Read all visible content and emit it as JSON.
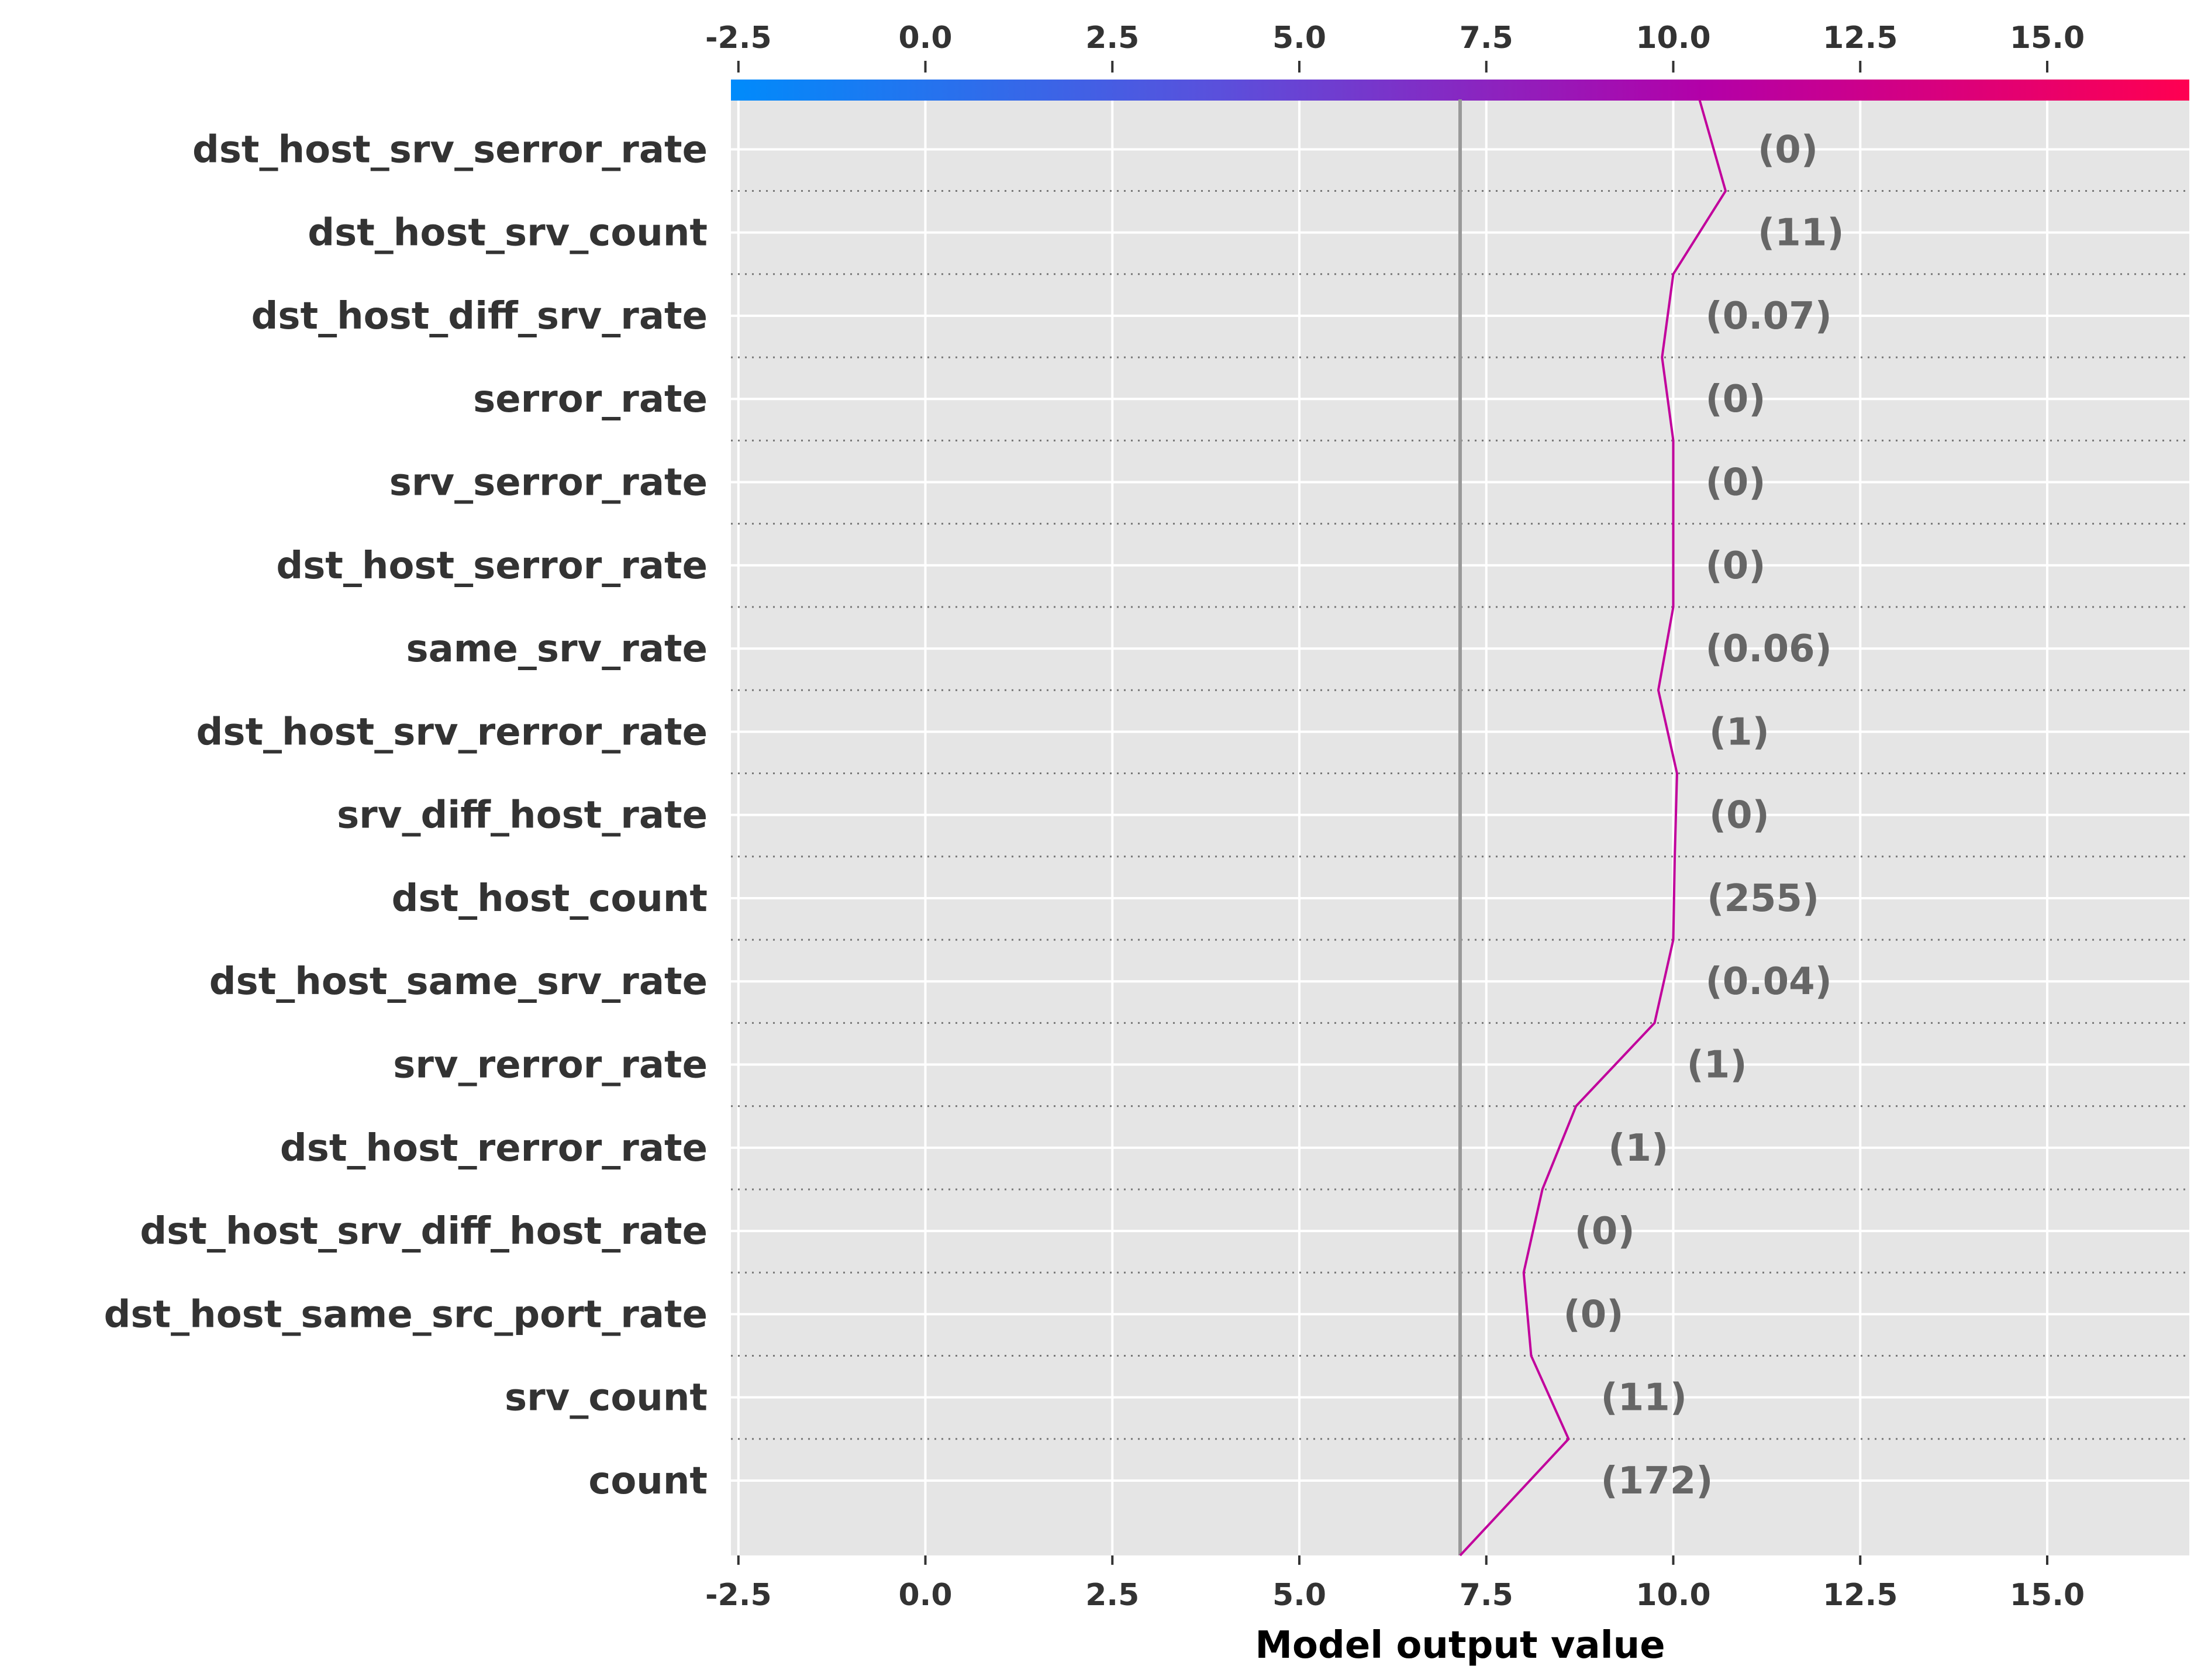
{
  "chart_data": {
    "type": "line",
    "chart_kind": "shap-decision-plot",
    "xlabel": "Model output value",
    "xlim": [
      -2.6,
      16.9
    ],
    "x_ticks": [
      -2.5,
      0.0,
      2.5,
      5.0,
      7.5,
      10.0,
      12.5,
      15.0
    ],
    "x_tick_labels": [
      "-2.5",
      "0.0",
      "2.5",
      "5.0",
      "7.5",
      "10.0",
      "12.5",
      "15.0"
    ],
    "base_value": 7.15,
    "grid": true,
    "background_color": "#e5e5e5",
    "line_color": "#c1009c",
    "base_line_color": "#999999",
    "colorbar": {
      "position": "top",
      "colors": [
        "#008bfb",
        "#5a50dc",
        "#b300a8",
        "#ff0051"
      ]
    },
    "features": [
      {
        "name": "dst_host_srv_serror_rate",
        "value_label": "(0)",
        "output": 10.7
      },
      {
        "name": "dst_host_srv_count",
        "value_label": "(11)",
        "output": 10.0
      },
      {
        "name": "dst_host_diff_srv_rate",
        "value_label": "(0.07)",
        "output": 9.85
      },
      {
        "name": "serror_rate",
        "value_label": "(0)",
        "output": 10.0
      },
      {
        "name": "srv_serror_rate",
        "value_label": "(0)",
        "output": 10.0
      },
      {
        "name": "dst_host_serror_rate",
        "value_label": "(0)",
        "output": 10.0
      },
      {
        "name": "same_srv_rate",
        "value_label": "(0.06)",
        "output": 9.8
      },
      {
        "name": "dst_host_srv_rerror_rate",
        "value_label": "(1)",
        "output": 10.05
      },
      {
        "name": "srv_diff_host_rate",
        "value_label": "(0)",
        "output": 10.02
      },
      {
        "name": "dst_host_count",
        "value_label": "(255)",
        "output": 10.0
      },
      {
        "name": "dst_host_same_srv_rate",
        "value_label": "(0.04)",
        "output": 9.75
      },
      {
        "name": "srv_rerror_rate",
        "value_label": "(1)",
        "output": 8.7
      },
      {
        "name": "dst_host_rerror_rate",
        "value_label": "(1)",
        "output": 8.25
      },
      {
        "name": "dst_host_srv_diff_host_rate",
        "value_label": "(0)",
        "output": 8.0
      },
      {
        "name": "dst_host_same_src_port_rate",
        "value_label": "(0)",
        "output": 8.1
      },
      {
        "name": "srv_count",
        "value_label": "(11)",
        "output": 8.6
      },
      {
        "name": "count",
        "value_label": "(172)",
        "output": 7.15
      }
    ],
    "final_output": 10.35
  }
}
